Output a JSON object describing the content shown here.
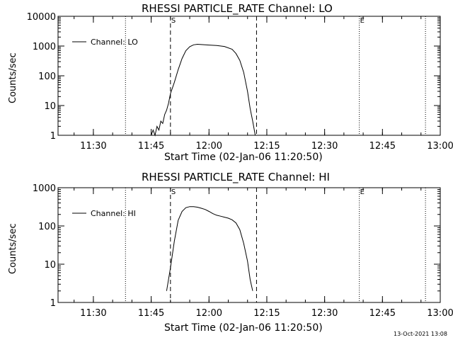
{
  "stamp": "13-Oct-2021 13:08",
  "chart_data": [
    {
      "type": "line",
      "title": "RHESSI PARTICLE_RATE Channel: LO",
      "xlabel": "Start Time (02-Jan-06 11:20:50)",
      "ylabel": "Counts/sec",
      "yscale": "log",
      "ylim": [
        1,
        10000
      ],
      "yticks": [
        {
          "v": 1,
          "label": "1"
        },
        {
          "v": 10,
          "label": "10"
        },
        {
          "v": 100,
          "label": "100"
        },
        {
          "v": 1000,
          "label": "1000"
        },
        {
          "v": 10000,
          "label": "10000"
        }
      ],
      "xlim": [
        "11:20:50",
        "13:00"
      ],
      "xticks": [
        "11:30",
        "11:45",
        "12:00",
        "12:15",
        "12:30",
        "12:45",
        "13:00"
      ],
      "legend": {
        "placement": "top-left",
        "entries": [
          "Channel: LO"
        ]
      },
      "markers": [
        {
          "label": "S",
          "time": "11:50:00",
          "style": "dashed"
        },
        {
          "label": "",
          "time": "12:12:20",
          "style": "dashed"
        },
        {
          "label": "E",
          "time": "12:39:00",
          "style": "dotted"
        }
      ],
      "dotted_lines": [
        "11:38:20",
        "12:56:10"
      ],
      "series": [
        {
          "name": "Channel: LO",
          "x": [
            "11:45:00",
            "11:45:30",
            "11:46:00",
            "11:46:30",
            "11:47:00",
            "11:47:30",
            "11:48:00",
            "11:48:30",
            "11:49:00",
            "11:49:30",
            "11:50:00",
            "11:51:00",
            "11:52:00",
            "11:53:00",
            "11:54:00",
            "11:55:00",
            "11:56:00",
            "11:57:00",
            "11:58:00",
            "11:59:00",
            "12:00:00",
            "12:02:00",
            "12:04:00",
            "12:06:00",
            "12:07:00",
            "12:08:00",
            "12:09:00",
            "12:10:00",
            "12:10:40",
            "12:11:20",
            "12:12:00"
          ],
          "values": [
            1,
            1.5,
            1,
            2,
            1.5,
            3,
            2.5,
            5,
            7,
            12,
            25,
            60,
            160,
            380,
            700,
            950,
            1100,
            1150,
            1120,
            1100,
            1080,
            1040,
            970,
            780,
            560,
            330,
            130,
            30,
            8,
            3,
            1
          ]
        }
      ]
    },
    {
      "type": "line",
      "title": "RHESSI PARTICLE_RATE Channel: HI",
      "xlabel": "Start Time (02-Jan-06 11:20:50)",
      "ylabel": "Counts/sec",
      "yscale": "log",
      "ylim": [
        1,
        1000
      ],
      "yticks": [
        {
          "v": 1,
          "label": "1"
        },
        {
          "v": 10,
          "label": "10"
        },
        {
          "v": 100,
          "label": "100"
        },
        {
          "v": 1000,
          "label": "1000"
        }
      ],
      "xlim": [
        "11:20:50",
        "13:00"
      ],
      "xticks": [
        "11:30",
        "11:45",
        "12:00",
        "12:15",
        "12:30",
        "12:45",
        "13:00"
      ],
      "legend": {
        "placement": "top-left",
        "entries": [
          "Channel: HI"
        ]
      },
      "markers": [
        {
          "label": "S",
          "time": "11:50:00",
          "style": "dashed"
        },
        {
          "label": "",
          "time": "12:12:20",
          "style": "dashed"
        },
        {
          "label": "E",
          "time": "12:39:00",
          "style": "dotted"
        }
      ],
      "dotted_lines": [
        "11:38:20",
        "12:56:10"
      ],
      "series": [
        {
          "name": "Channel: HI",
          "x": [
            "11:49:00",
            "11:50:00",
            "11:51:00",
            "11:52:00",
            "11:53:00",
            "11:54:00",
            "11:55:00",
            "11:56:00",
            "11:57:00",
            "11:58:00",
            "11:59:00",
            "12:00:00",
            "12:01:00",
            "12:02:00",
            "12:03:00",
            "12:04:00",
            "12:05:00",
            "12:06:00",
            "12:07:00",
            "12:08:00",
            "12:09:00",
            "12:10:00",
            "12:10:40",
            "12:11:20"
          ],
          "values": [
            2,
            8,
            40,
            140,
            240,
            300,
            320,
            320,
            310,
            290,
            270,
            240,
            210,
            190,
            180,
            170,
            160,
            145,
            120,
            80,
            35,
            12,
            4,
            2
          ]
        }
      ]
    }
  ]
}
